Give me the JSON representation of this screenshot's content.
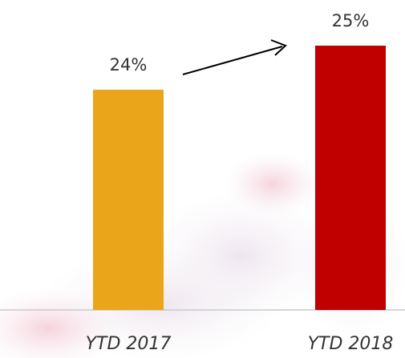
{
  "chart_data": {
    "type": "bar",
    "categories": [
      "YTD 2017",
      "YTD 2018"
    ],
    "values": [
      24,
      25
    ],
    "value_labels": [
      "24%",
      "25%"
    ],
    "colors": [
      "#eba51a",
      "#c00000"
    ],
    "ylim": [
      19,
      25
    ]
  }
}
